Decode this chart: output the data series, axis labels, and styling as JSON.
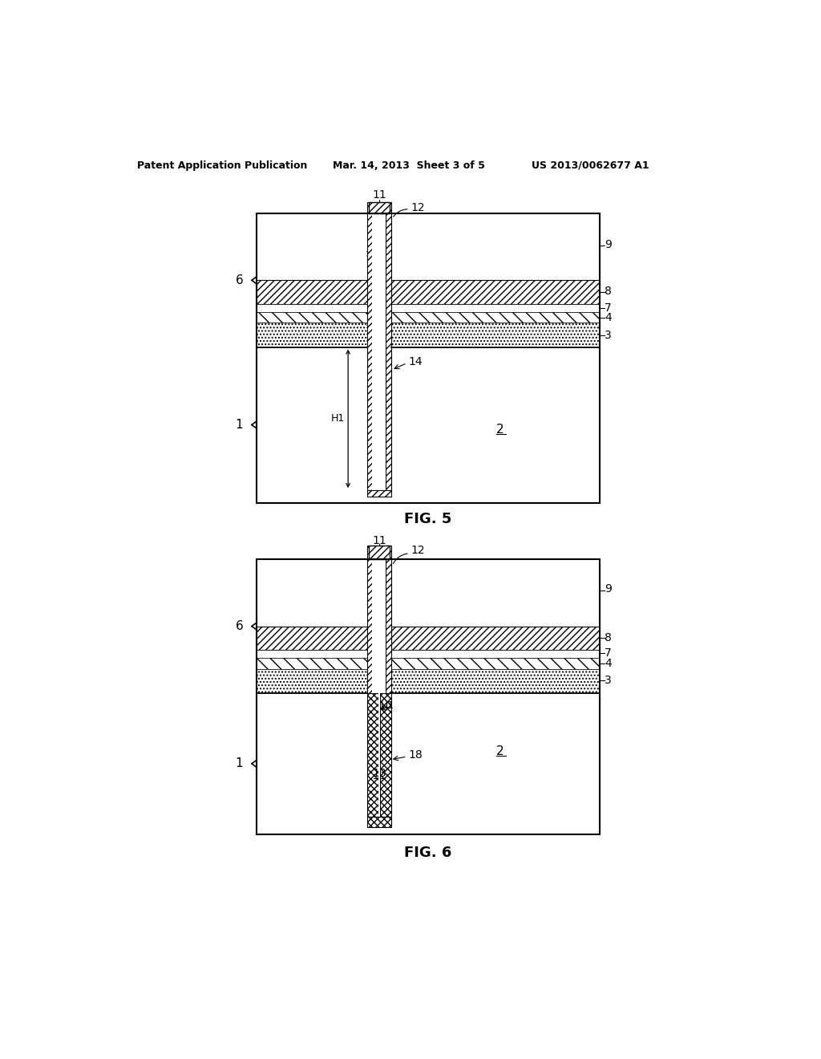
{
  "header_left": "Patent Application Publication",
  "header_center": "Mar. 14, 2013  Sheet 3 of 5",
  "header_right": "US 2013/0062677 A1",
  "fig5_label": "FIG. 5",
  "fig6_label": "FIG. 6",
  "bg_color": "#ffffff"
}
